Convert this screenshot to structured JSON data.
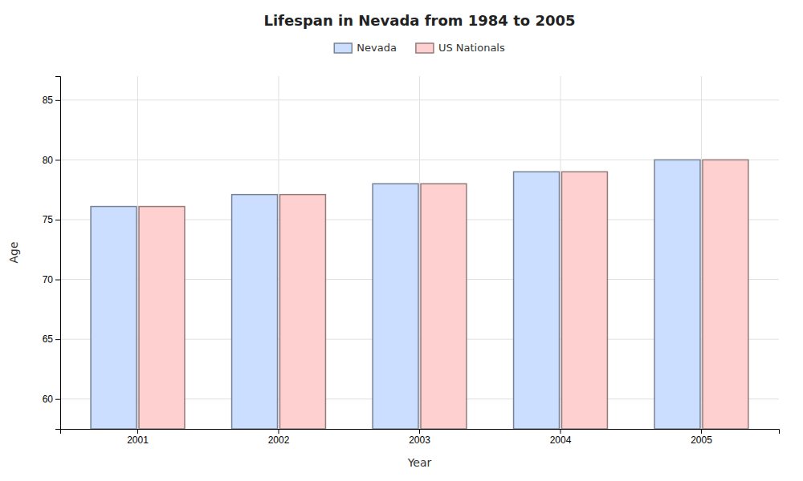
{
  "chart_data": {
    "type": "bar",
    "title": "Lifespan in Nevada from 1984 to 2005",
    "xlabel": "Year",
    "ylabel": "Age",
    "categories": [
      "2001",
      "2002",
      "2003",
      "2004",
      "2005"
    ],
    "series": [
      {
        "name": "Nevada",
        "color": "#ccdeff",
        "values": [
          76.1,
          77.1,
          78.0,
          79.0,
          80.0
        ]
      },
      {
        "name": "US Nationals",
        "color": "#ffd0d0",
        "values": [
          76.1,
          77.1,
          78.0,
          79.0,
          80.0
        ]
      }
    ],
    "ylim": [
      57.5,
      87
    ],
    "yticks": [
      60,
      65,
      70,
      75,
      80,
      85
    ],
    "grid": true,
    "legend": "top"
  }
}
